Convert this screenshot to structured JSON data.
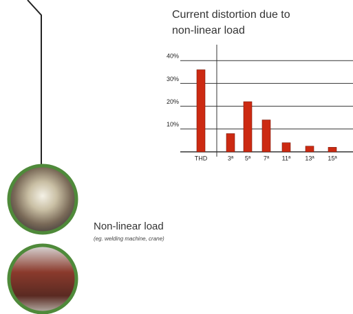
{
  "chart_data": {
    "type": "bar",
    "title": "Current distortion due to non-linear load",
    "categories": [
      "THD",
      "3ª",
      "5ª",
      "7ª",
      "11ª",
      "13ª",
      "15ª"
    ],
    "values": [
      36,
      8,
      22,
      14,
      4,
      2.5,
      2
    ],
    "color": "#cc2a12",
    "ylim": [
      0,
      47
    ],
    "yticks": [
      {
        "value": 10,
        "label": "10%"
      },
      {
        "value": 20,
        "label": "20%"
      },
      {
        "value": 30,
        "label": "30%"
      },
      {
        "value": 40,
        "label": "40%"
      }
    ],
    "grid": true
  },
  "load": {
    "title": "Non-linear load",
    "subtitle": "(eg. welding machine, crane)"
  }
}
